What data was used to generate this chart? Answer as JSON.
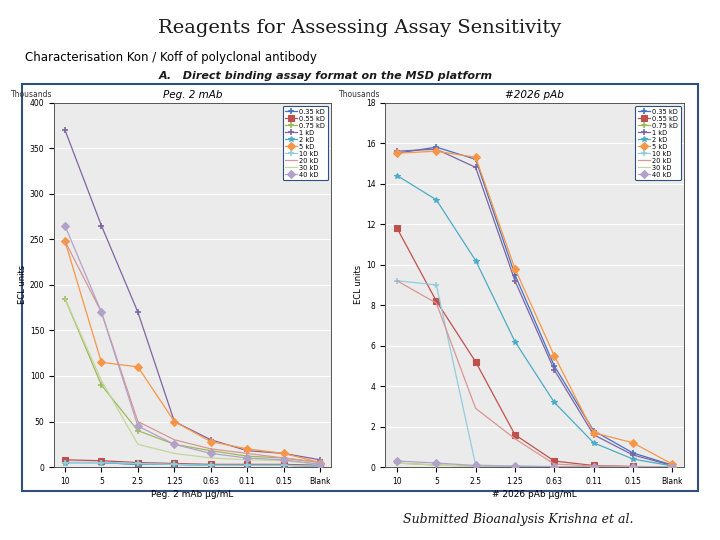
{
  "title": "Reagents for Assessing Assay Sensitivity",
  "subtitle": "Characterisation Kon / Koff of polyclonal antibody",
  "panel_label": "A.   Direct binding assay format on the MSD platform",
  "footer": "Submitted Bioanalysis Krishna et al.",
  "x_labels": [
    "10",
    "5",
    "2.5",
    "1.25",
    "0.63",
    "0.11",
    "0.15",
    "Blank"
  ],
  "legend_labels": [
    "0.35 kD",
    "0.55 kD",
    "0.75 kD",
    "1 kD",
    "2 kD",
    "5 kD",
    "10 kD",
    "20 kD",
    "30 kD",
    "40 kD"
  ],
  "series_colors": [
    "#4472C4",
    "#C0504D",
    "#9BBB59",
    "#8064A2",
    "#4BACC6",
    "#F79646",
    "#92CDDC",
    "#D99694",
    "#C3D69B",
    "#B2A2C7"
  ],
  "chart1": {
    "title": "Peg. 2 mAb",
    "xlabel": "Peg. 2 mAb μg/mL",
    "ylabel_rot": "Thousands",
    "ylabel": "ECL units",
    "ylim": [
      0,
      400
    ],
    "yticks": [
      0,
      50,
      100,
      150,
      200,
      250,
      300,
      350,
      400
    ],
    "values": [
      [
        5,
        5,
        3,
        3,
        2,
        2,
        2,
        1
      ],
      [
        8,
        7,
        5,
        4,
        3,
        3,
        3,
        2
      ],
      [
        185,
        90,
        40,
        25,
        18,
        12,
        10,
        5
      ],
      [
        370,
        265,
        170,
        50,
        30,
        18,
        15,
        8
      ],
      [
        5,
        5,
        3,
        3,
        2,
        2,
        2,
        1
      ],
      [
        248,
        115,
        110,
        50,
        28,
        20,
        15,
        5
      ],
      [
        5,
        5,
        4,
        3,
        2,
        2,
        2,
        1
      ],
      [
        248,
        170,
        50,
        30,
        20,
        15,
        10,
        5
      ],
      [
        185,
        95,
        25,
        15,
        10,
        8,
        7,
        3
      ],
      [
        265,
        170,
        45,
        25,
        15,
        10,
        8,
        3
      ]
    ]
  },
  "chart2": {
    "title": "#2026 pAb",
    "xlabel": "# 2026 pAb μg/mL",
    "ylabel_rot": "Thousands",
    "ylabel": "ECL units",
    "ylim": [
      0,
      18000
    ],
    "yticks": [
      0,
      2000,
      4000,
      6000,
      8000,
      10000,
      12000,
      14000,
      16000,
      18000
    ],
    "values": [
      [
        15500,
        15800,
        15200,
        9500,
        5000,
        1800,
        700,
        100
      ],
      [
        11800,
        8200,
        5200,
        1600,
        300,
        80,
        30,
        10
      ],
      [
        200,
        100,
        50,
        30,
        20,
        10,
        8,
        5
      ],
      [
        15600,
        15700,
        14800,
        9200,
        4800,
        1600,
        600,
        80
      ],
      [
        14400,
        13200,
        10200,
        6200,
        3200,
        1200,
        400,
        60
      ],
      [
        15500,
        15600,
        15300,
        9800,
        5500,
        1700,
        1200,
        150
      ],
      [
        9200,
        9000,
        100,
        50,
        30,
        10,
        5,
        3
      ],
      [
        9200,
        8100,
        2900,
        1400,
        150,
        60,
        30,
        10
      ],
      [
        200,
        100,
        50,
        20,
        10,
        5,
        3,
        2
      ],
      [
        300,
        200,
        80,
        40,
        20,
        8,
        5,
        2
      ]
    ]
  },
  "bg_color": "#FFFFFF"
}
